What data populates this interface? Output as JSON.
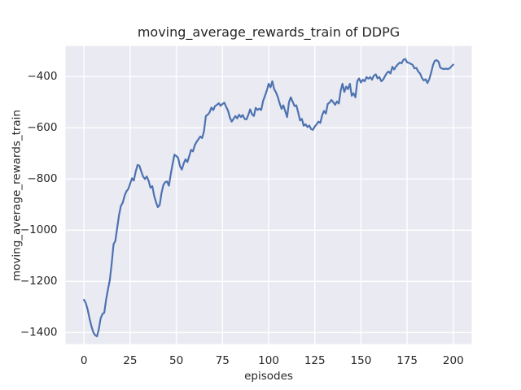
{
  "figure": {
    "title": "moving_average_rewards_train of DDPG",
    "xlabel": "episodes",
    "ylabel": "moving_average_rewards_train"
  },
  "chart_data": {
    "type": "line",
    "title": "moving_average_rewards_train of DDPG",
    "xlabel": "episodes",
    "ylabel": "moving_average_rewards_train",
    "legend": "none",
    "grid": true,
    "xlim": [
      -10,
      210
    ],
    "ylim": [
      -1445,
      -280
    ],
    "xticks": [
      0,
      25,
      50,
      75,
      100,
      125,
      150,
      175,
      200
    ],
    "yticks": [
      -400,
      -600,
      -800,
      -1000,
      -1200,
      -1400
    ],
    "style": {
      "figure_bg": "#ffffff",
      "axes_bg": "#eaeaf2",
      "grid_color": "#ffffff",
      "text_color": "#262626",
      "line_color": "#4c72b0"
    },
    "series": [
      {
        "name": "moving_average_rewards_train",
        "color": "#4c72b0",
        "x_start": 0,
        "x_step": 1,
        "values": [
          -1272,
          -1286,
          -1310,
          -1345,
          -1375,
          -1398,
          -1410,
          -1415,
          -1388,
          -1345,
          -1327,
          -1322,
          -1270,
          -1230,
          -1195,
          -1130,
          -1055,
          -1042,
          -990,
          -940,
          -905,
          -892,
          -865,
          -848,
          -839,
          -818,
          -797,
          -806,
          -771,
          -745,
          -748,
          -770,
          -790,
          -800,
          -790,
          -807,
          -834,
          -828,
          -866,
          -890,
          -910,
          -901,
          -855,
          -823,
          -812,
          -810,
          -826,
          -780,
          -740,
          -705,
          -710,
          -718,
          -750,
          -763,
          -739,
          -723,
          -734,
          -710,
          -686,
          -692,
          -668,
          -655,
          -644,
          -634,
          -640,
          -613,
          -554,
          -549,
          -540,
          -521,
          -531,
          -515,
          -510,
          -504,
          -514,
          -507,
          -502,
          -518,
          -533,
          -560,
          -576,
          -565,
          -554,
          -563,
          -549,
          -558,
          -550,
          -565,
          -567,
          -549,
          -528,
          -547,
          -554,
          -522,
          -530,
          -525,
          -530,
          -495,
          -475,
          -455,
          -428,
          -442,
          -418,
          -449,
          -462,
          -480,
          -505,
          -526,
          -512,
          -535,
          -558,
          -500,
          -481,
          -498,
          -515,
          -512,
          -540,
          -571,
          -565,
          -592,
          -586,
          -597,
          -591,
          -605,
          -608,
          -595,
          -586,
          -576,
          -581,
          -550,
          -534,
          -544,
          -507,
          -501,
          -491,
          -500,
          -510,
          -497,
          -505,
          -455,
          -428,
          -460,
          -439,
          -449,
          -428,
          -475,
          -465,
          -481,
          -418,
          -407,
          -423,
          -412,
          -418,
          -402,
          -408,
          -402,
          -412,
          -396,
          -391,
          -407,
          -402,
          -418,
          -412,
          -398,
          -386,
          -380,
          -388,
          -362,
          -372,
          -360,
          -352,
          -345,
          -348,
          -334,
          -331,
          -344,
          -346,
          -350,
          -354,
          -368,
          -366,
          -380,
          -388,
          -405,
          -415,
          -410,
          -425,
          -410,
          -385,
          -355,
          -338,
          -336,
          -342,
          -365,
          -369,
          -370,
          -369,
          -370,
          -368,
          -360,
          -353
        ]
      }
    ]
  }
}
